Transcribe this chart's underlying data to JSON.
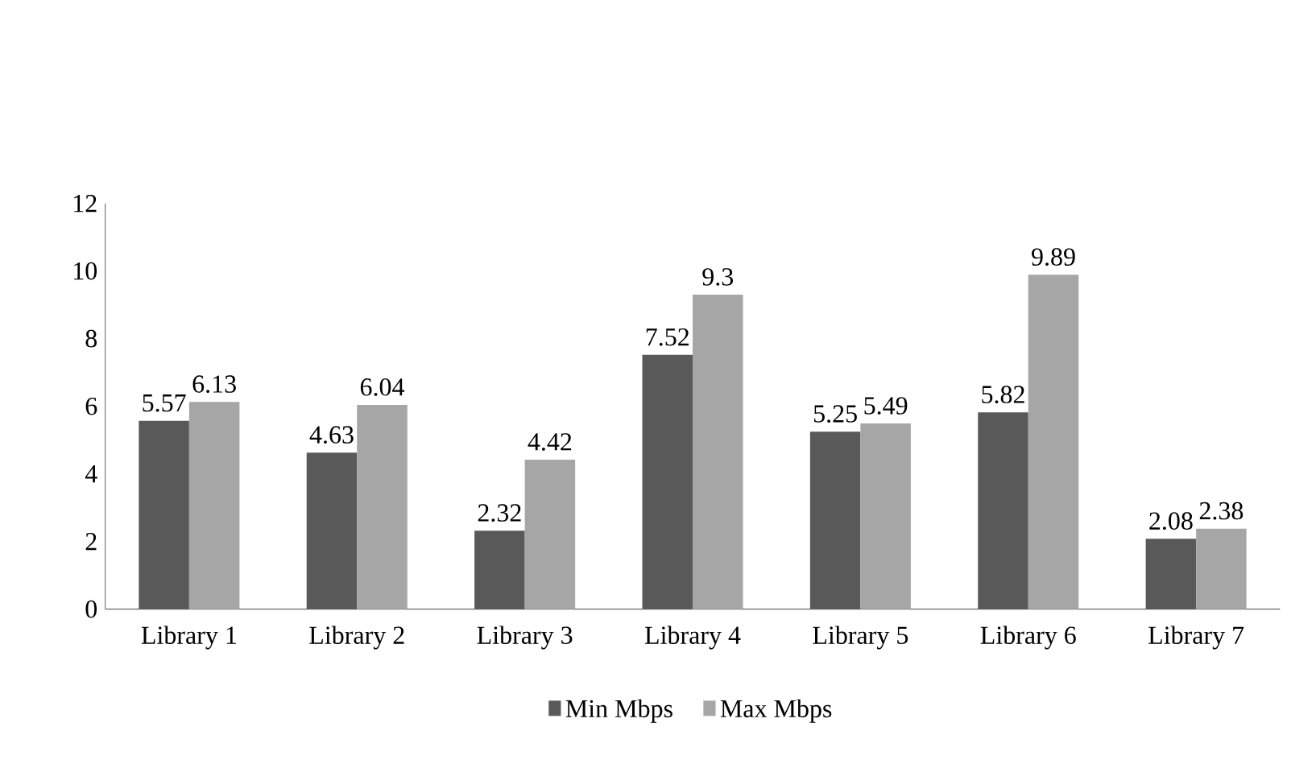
{
  "chart_data": {
    "type": "bar",
    "categories": [
      "Library 1",
      "Library 2",
      "Library 3",
      "Library 4",
      "Library 5",
      "Library 6",
      "Library 7"
    ],
    "series": [
      {
        "name": "Min Mbps",
        "color": "#595959",
        "values": [
          5.57,
          4.63,
          2.32,
          7.52,
          5.25,
          5.82,
          2.08
        ]
      },
      {
        "name": "Max Mbps",
        "color": "#a6a6a6",
        "values": [
          6.13,
          6.04,
          4.42,
          9.3,
          5.49,
          9.89,
          2.38
        ]
      }
    ],
    "ylim": [
      0,
      12
    ],
    "yticks": [
      0,
      2,
      4,
      6,
      8,
      10,
      12
    ],
    "data_labels": true,
    "legend": "bottom",
    "grid": false
  }
}
